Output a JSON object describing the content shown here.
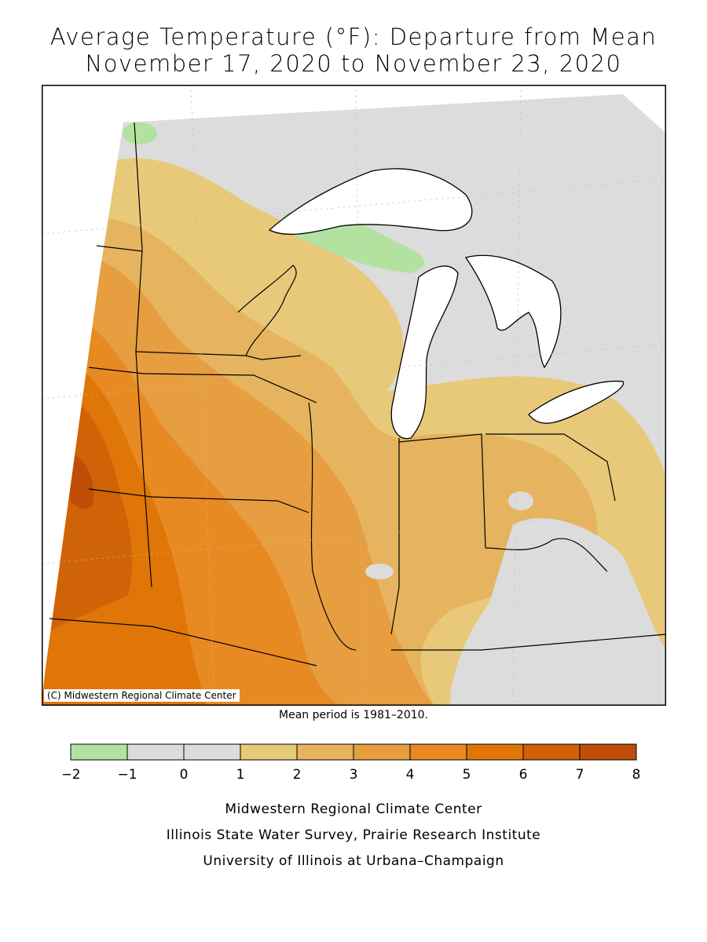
{
  "title": {
    "line1": "Average Temperature (°F): Departure from Mean",
    "line2": "November 17, 2020 to November 23, 2020"
  },
  "map": {
    "copyright": "(C) Midwestern Regional Climate Center",
    "region": "Midwest United States",
    "colors": {
      "neg2": "#b3e2a0",
      "neg1": "#dcdcdc",
      "zero": "#dcdcdc",
      "one": "#e8c97a",
      "two": "#e6b45e",
      "three": "#e69e40",
      "four": "#e88a22",
      "five": "#e07608",
      "six": "#d06208",
      "seven": "#bf4f08",
      "lake": "#ffffff",
      "border": "#000000"
    }
  },
  "mean_period": "Mean period is 1981–2010.",
  "legend": {
    "ticks": [
      "−2",
      "−1",
      "0",
      "1",
      "2",
      "3",
      "4",
      "5",
      "6",
      "7",
      "8"
    ],
    "colors": [
      "#b3e2a0",
      "#dcdcdc",
      "#dcdcdc",
      "#e8c97a",
      "#e6b45e",
      "#e69e40",
      "#e88a22",
      "#e07608",
      "#d06208",
      "#bf4f08"
    ]
  },
  "credits": {
    "line1": "Midwestern Regional Climate Center",
    "line2": "Illinois State Water Survey, Prairie Research Institute",
    "line3": "University of Illinois at Urbana–Champaign"
  }
}
